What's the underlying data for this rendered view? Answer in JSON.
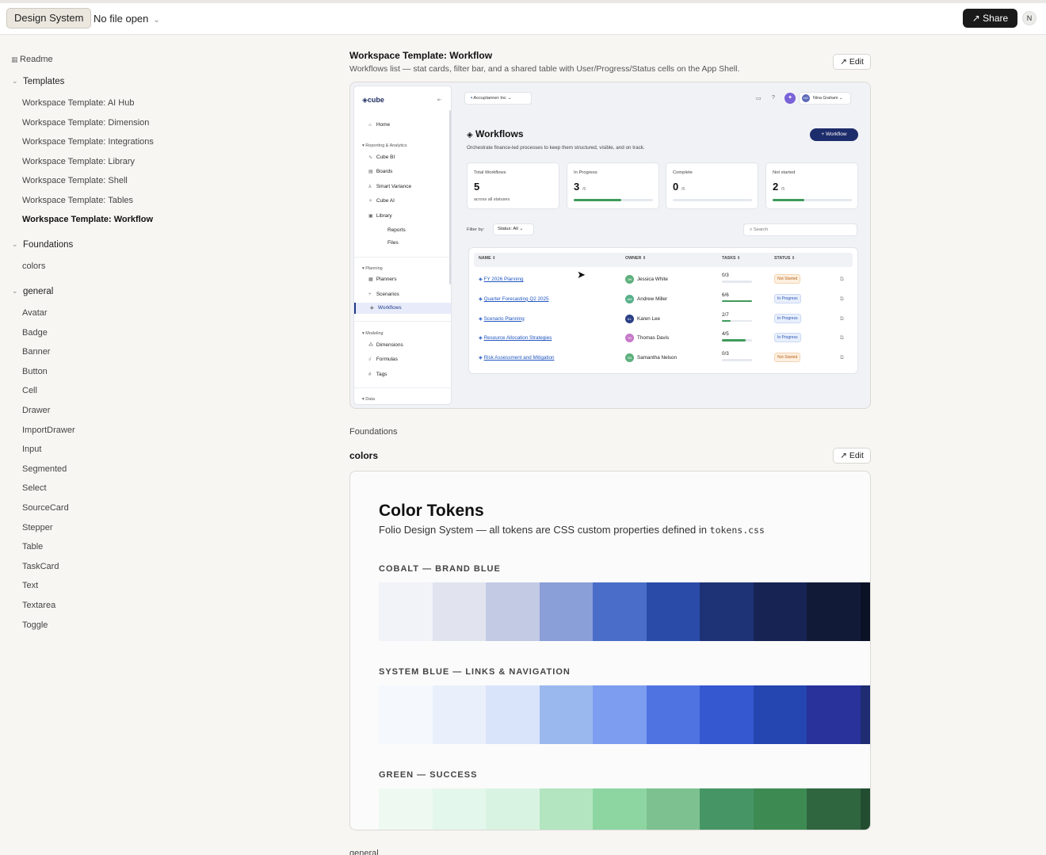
{
  "topbar": {
    "design_system_label": "Design System",
    "file_label": "No file open",
    "share_label": "Share",
    "avatar_initial": "N"
  },
  "sidebar": {
    "readme": "Readme",
    "templates_label": "Templates",
    "templates": [
      "Workspace Template: AI Hub",
      "Workspace Template: Dimension",
      "Workspace Template: Integrations",
      "Workspace Template: Library",
      "Workspace Template: Shell",
      "Workspace Template: Tables",
      "Workspace Template: Workflow"
    ],
    "foundations_label": "Foundations",
    "foundations": [
      "colors"
    ],
    "general_label": "general",
    "general": [
      "Avatar",
      "Badge",
      "Banner",
      "Button",
      "Cell",
      "Drawer",
      "ImportDrawer",
      "Input",
      "Segmented",
      "Select",
      "SourceCard",
      "Stepper",
      "Table",
      "TaskCard",
      "Text",
      "Textarea",
      "Toggle"
    ]
  },
  "workflow_section": {
    "title": "Workspace Template: Workflow",
    "subtitle": "Workflows list — stat cards, filter bar, and a shared table with User/Progress/Status cells on the App Shell.",
    "edit_label": "Edit"
  },
  "app": {
    "logo": "cube",
    "org": "Accuplanner Inc",
    "user_initials": "NG",
    "user_name": "Nina Graham",
    "nav": {
      "home": "Home",
      "reporting": "Reporting & Analytics",
      "cube_bi": "Cube BI",
      "boards": "Boards",
      "smart_variance": "Smart Variance",
      "cube_ai": "Cube AI",
      "library": "Library",
      "reports": "Reports",
      "files": "Files",
      "planning": "Planning",
      "planners": "Planners",
      "scenarios": "Scenarios",
      "workflows": "Workflows",
      "modeling": "Modeling",
      "dimensions": "Dimensions",
      "formulas": "Formulas",
      "tags": "Tags",
      "data": "Data"
    },
    "page_title": "Workflows",
    "page_sub": "Orchestrate finance-led processes to keep them structured, visible, and on track.",
    "new_workflow": "+ Workflow",
    "stats": [
      {
        "label": "Total Workflows",
        "value": "5",
        "sub": "across all statuses"
      },
      {
        "label": "In Progress",
        "value": "3",
        "denom": "/5",
        "progress": 0.6
      },
      {
        "label": "Complete",
        "value": "0",
        "denom": "/5",
        "progress": 0
      },
      {
        "label": "Not started",
        "value": "2",
        "denom": "/5",
        "progress": 0.4
      }
    ],
    "filter_label": "Filter by:",
    "filter_value": "Status: All",
    "search_placeholder": "Search",
    "columns": [
      "NAME",
      "OWNER",
      "TASKS",
      "STATUS"
    ],
    "rows": [
      {
        "name": "FY 2026 Planning",
        "owner": "Jessica White",
        "initials": "JW",
        "tasks": "0/3",
        "progress": 0,
        "status": "Not Started",
        "color": "#5db07c"
      },
      {
        "name": "Quarter Forecasting Q2 2025",
        "owner": "Andrew Miller",
        "initials": "AM",
        "tasks": "6/6",
        "progress": 1,
        "status": "In Progress",
        "color": "#57b08a"
      },
      {
        "name": "Scenario Planning",
        "owner": "Karen Lee",
        "initials": "KL",
        "tasks": "2/7",
        "progress": 0.29,
        "status": "In Progress",
        "color": "#2a3f86"
      },
      {
        "name": "Resource Allocation Strategies",
        "owner": "Thomas Davis",
        "initials": "TD",
        "tasks": "4/5",
        "progress": 0.8,
        "status": "In Progress",
        "color": "#c678c9"
      },
      {
        "name": "Risk Assessment and Mitigation",
        "owner": "Samantha Nelson",
        "initials": "SN",
        "tasks": "0/3",
        "progress": 0,
        "status": "Not Started",
        "color": "#5db07c"
      }
    ]
  },
  "foundations_heading": "Foundations",
  "colors_section": {
    "title": "colors",
    "edit_label": "Edit",
    "ct_title": "Color Tokens",
    "ct_sub": "Folio Design System — all tokens are CSS custom properties defined in",
    "ct_file": "tokens.css",
    "palettes": [
      {
        "label": "COBALT — BRAND BLUE",
        "swatches": [
          "#f2f3f8",
          "#e1e4ef",
          "#c3cae4",
          "#8a9ed8",
          "#4a6dc9",
          "#2a4ba8",
          "#1e3375",
          "#172453",
          "#111b38",
          "#0b1226"
        ]
      },
      {
        "label": "SYSTEM BLUE — LINKS & NAVIGATION",
        "swatches": [
          "#f5f8fd",
          "#eaf0fb",
          "#d9e4fa",
          "#9bb8ee",
          "#7c9df0",
          "#5073e2",
          "#3557cf",
          "#2545b0",
          "#28329a",
          "#1f2c72"
        ]
      },
      {
        "label": "GREEN — SUCCESS",
        "swatches": [
          "#eef9f2",
          "#e4f7ec",
          "#d9f3e2",
          "#b2e5c0",
          "#8dd6a2",
          "#7dc191",
          "#469565",
          "#3d8b52",
          "#2f6640",
          "#234d30"
        ]
      }
    ]
  },
  "general_heading": "general"
}
